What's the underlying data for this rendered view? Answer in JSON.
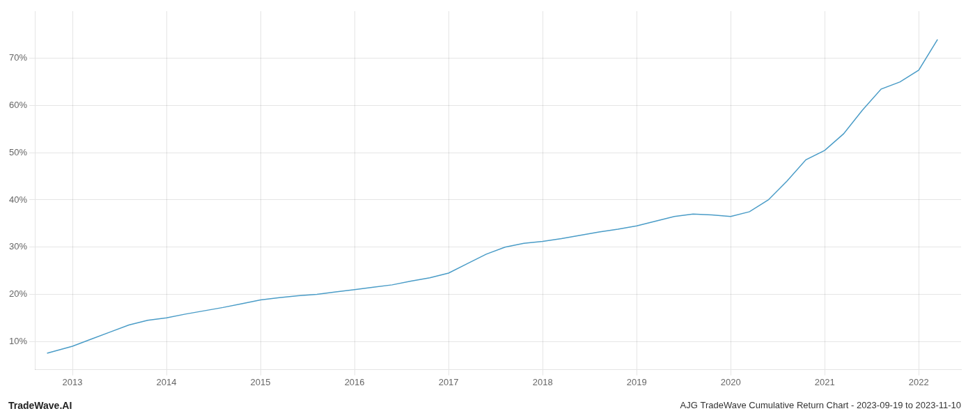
{
  "chart_data": {
    "type": "line",
    "title": "AJG TradeWave Cumulative Return Chart - 2023-09-19 to 2023-11-10",
    "annotations": [
      "TradeWave.AI"
    ],
    "color": "#4a9cc7",
    "grid": true,
    "x": [
      2012.73,
      2013.0,
      2013.2,
      2013.4,
      2013.6,
      2013.8,
      2014.0,
      2014.2,
      2014.4,
      2014.6,
      2014.8,
      2015.0,
      2015.2,
      2015.4,
      2015.6,
      2015.8,
      2016.0,
      2016.2,
      2016.4,
      2016.6,
      2016.8,
      2017.0,
      2017.2,
      2017.4,
      2017.6,
      2017.8,
      2018.0,
      2018.2,
      2018.4,
      2018.6,
      2018.8,
      2019.0,
      2019.2,
      2019.4,
      2019.6,
      2019.8,
      2020.0,
      2020.2,
      2020.4,
      2020.6,
      2020.8,
      2021.0,
      2021.2,
      2021.4,
      2021.6,
      2021.8,
      2022.0,
      2022.2
    ],
    "values": [
      7.5,
      9.0,
      10.5,
      12.0,
      13.5,
      14.5,
      15.0,
      15.8,
      16.5,
      17.2,
      18.0,
      18.8,
      19.3,
      19.7,
      20.0,
      20.5,
      21.0,
      21.5,
      22.0,
      22.8,
      23.5,
      24.5,
      26.5,
      28.5,
      30.0,
      30.8,
      31.2,
      31.8,
      32.5,
      33.2,
      33.8,
      34.5,
      35.5,
      36.5,
      37.0,
      36.8,
      36.5,
      37.5,
      40.0,
      44.0,
      48.5,
      50.5,
      54.0,
      59.0,
      63.5,
      65.0,
      67.5,
      74.0
    ],
    "xlim": [
      2012.6,
      2022.45
    ],
    "xticks": [
      2013,
      2014,
      2015,
      2016,
      2017,
      2018,
      2019,
      2020,
      2021,
      2022
    ],
    "ylim": [
      4,
      80
    ],
    "yticks": [
      {
        "value": 10,
        "label": "10%"
      },
      {
        "value": 20,
        "label": "20%"
      },
      {
        "value": 30,
        "label": "30%"
      },
      {
        "value": 40,
        "label": "40%"
      },
      {
        "value": 50,
        "label": "50%"
      },
      {
        "value": 60,
        "label": "60%"
      },
      {
        "value": 70,
        "label": "70%"
      }
    ]
  }
}
